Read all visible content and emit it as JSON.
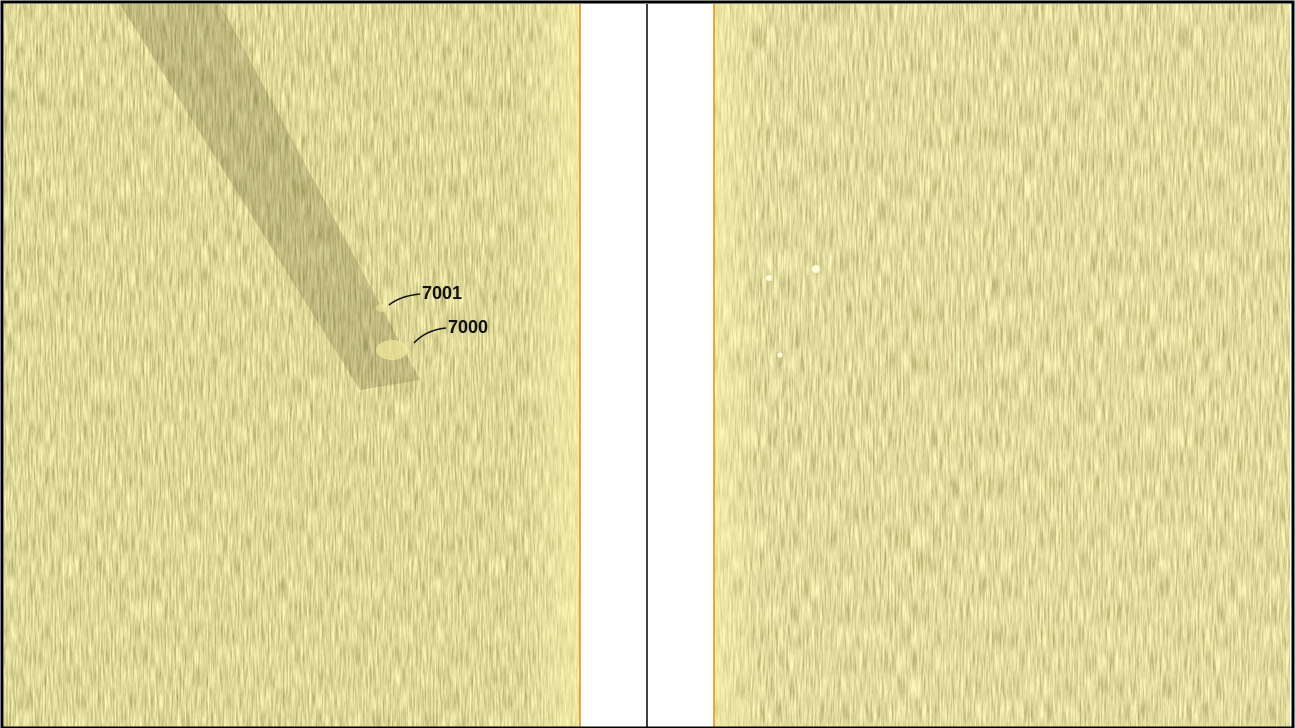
{
  "annotations": [
    {
      "text": "7001"
    },
    {
      "text": "7000"
    }
  ]
}
